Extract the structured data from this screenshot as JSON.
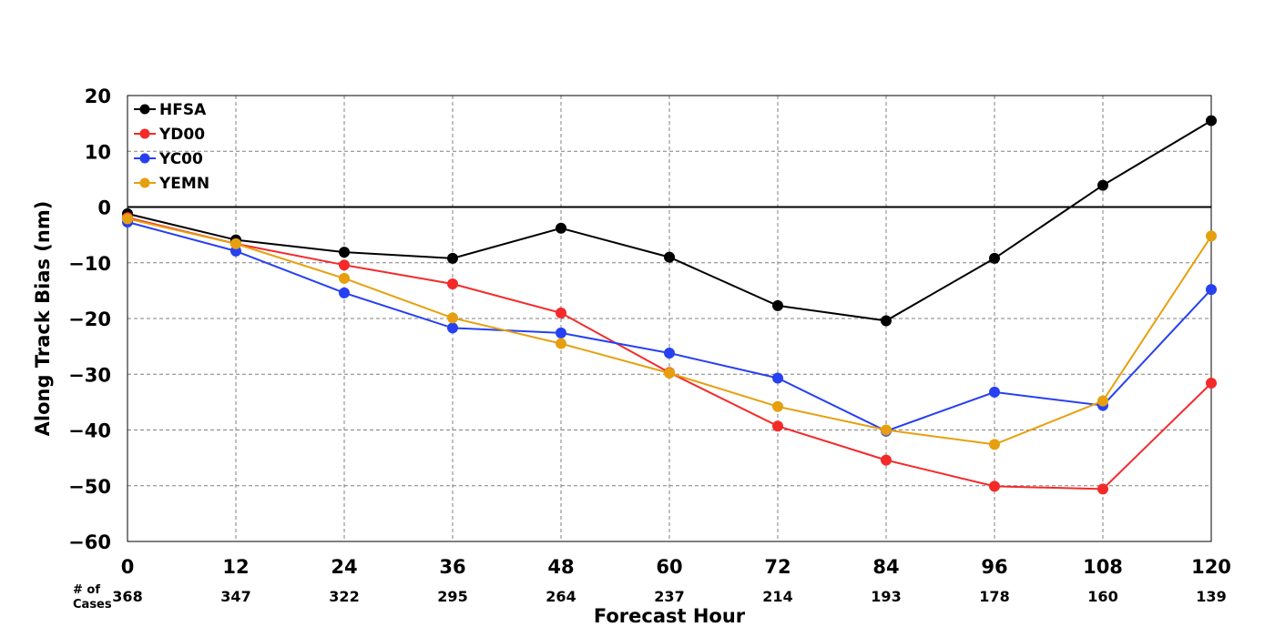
{
  "chart_data": {
    "type": "line",
    "title": "",
    "xlabel": "Forecast Hour",
    "ylabel": "Along Track Bias (nm)",
    "xlim": [
      0,
      120
    ],
    "ylim": [
      -60,
      20
    ],
    "x": [
      0,
      12,
      24,
      36,
      48,
      60,
      72,
      84,
      96,
      108,
      120
    ],
    "x_tick_labels": [
      "0",
      "12",
      "24",
      "36",
      "48",
      "60",
      "72",
      "84",
      "96",
      "108",
      "120"
    ],
    "y_ticks": [
      20,
      10,
      0,
      -10,
      -20,
      -30,
      -40,
      -50,
      -60
    ],
    "y_tick_labels": [
      "20",
      "10",
      "0",
      "−10",
      "−20",
      "−30",
      "−40",
      "−50",
      "−60"
    ],
    "grid": true,
    "legend_position": "top-left",
    "cases_caption": [
      "# of",
      "Cases"
    ],
    "cases": [
      "368",
      "347",
      "322",
      "295",
      "264",
      "237",
      "214",
      "193",
      "178",
      "160",
      "139"
    ],
    "series": [
      {
        "name": "HFSA",
        "color": "#000000",
        "values": [
          -1.2,
          -5.9,
          -8.1,
          -9.2,
          -3.8,
          -9.0,
          -17.7,
          -20.4,
          -9.2,
          3.9,
          15.5
        ]
      },
      {
        "name": "YD00",
        "color": "#f42a2a",
        "values": [
          -1.9,
          -6.6,
          -10.4,
          -13.8,
          -19.0,
          -29.7,
          -39.3,
          -45.4,
          -50.1,
          -50.6,
          -31.6
        ]
      },
      {
        "name": "YC00",
        "color": "#2640f2",
        "values": [
          -2.7,
          -7.9,
          -15.4,
          -21.7,
          -22.6,
          -26.2,
          -30.7,
          -40.2,
          -33.2,
          -35.6,
          -14.8
        ]
      },
      {
        "name": "YEMN",
        "color": "#e6a00f",
        "values": [
          -2.1,
          -6.6,
          -12.8,
          -19.9,
          -24.5,
          -29.8,
          -35.8,
          -40.0,
          -42.6,
          -34.8,
          -5.2
        ]
      }
    ]
  }
}
